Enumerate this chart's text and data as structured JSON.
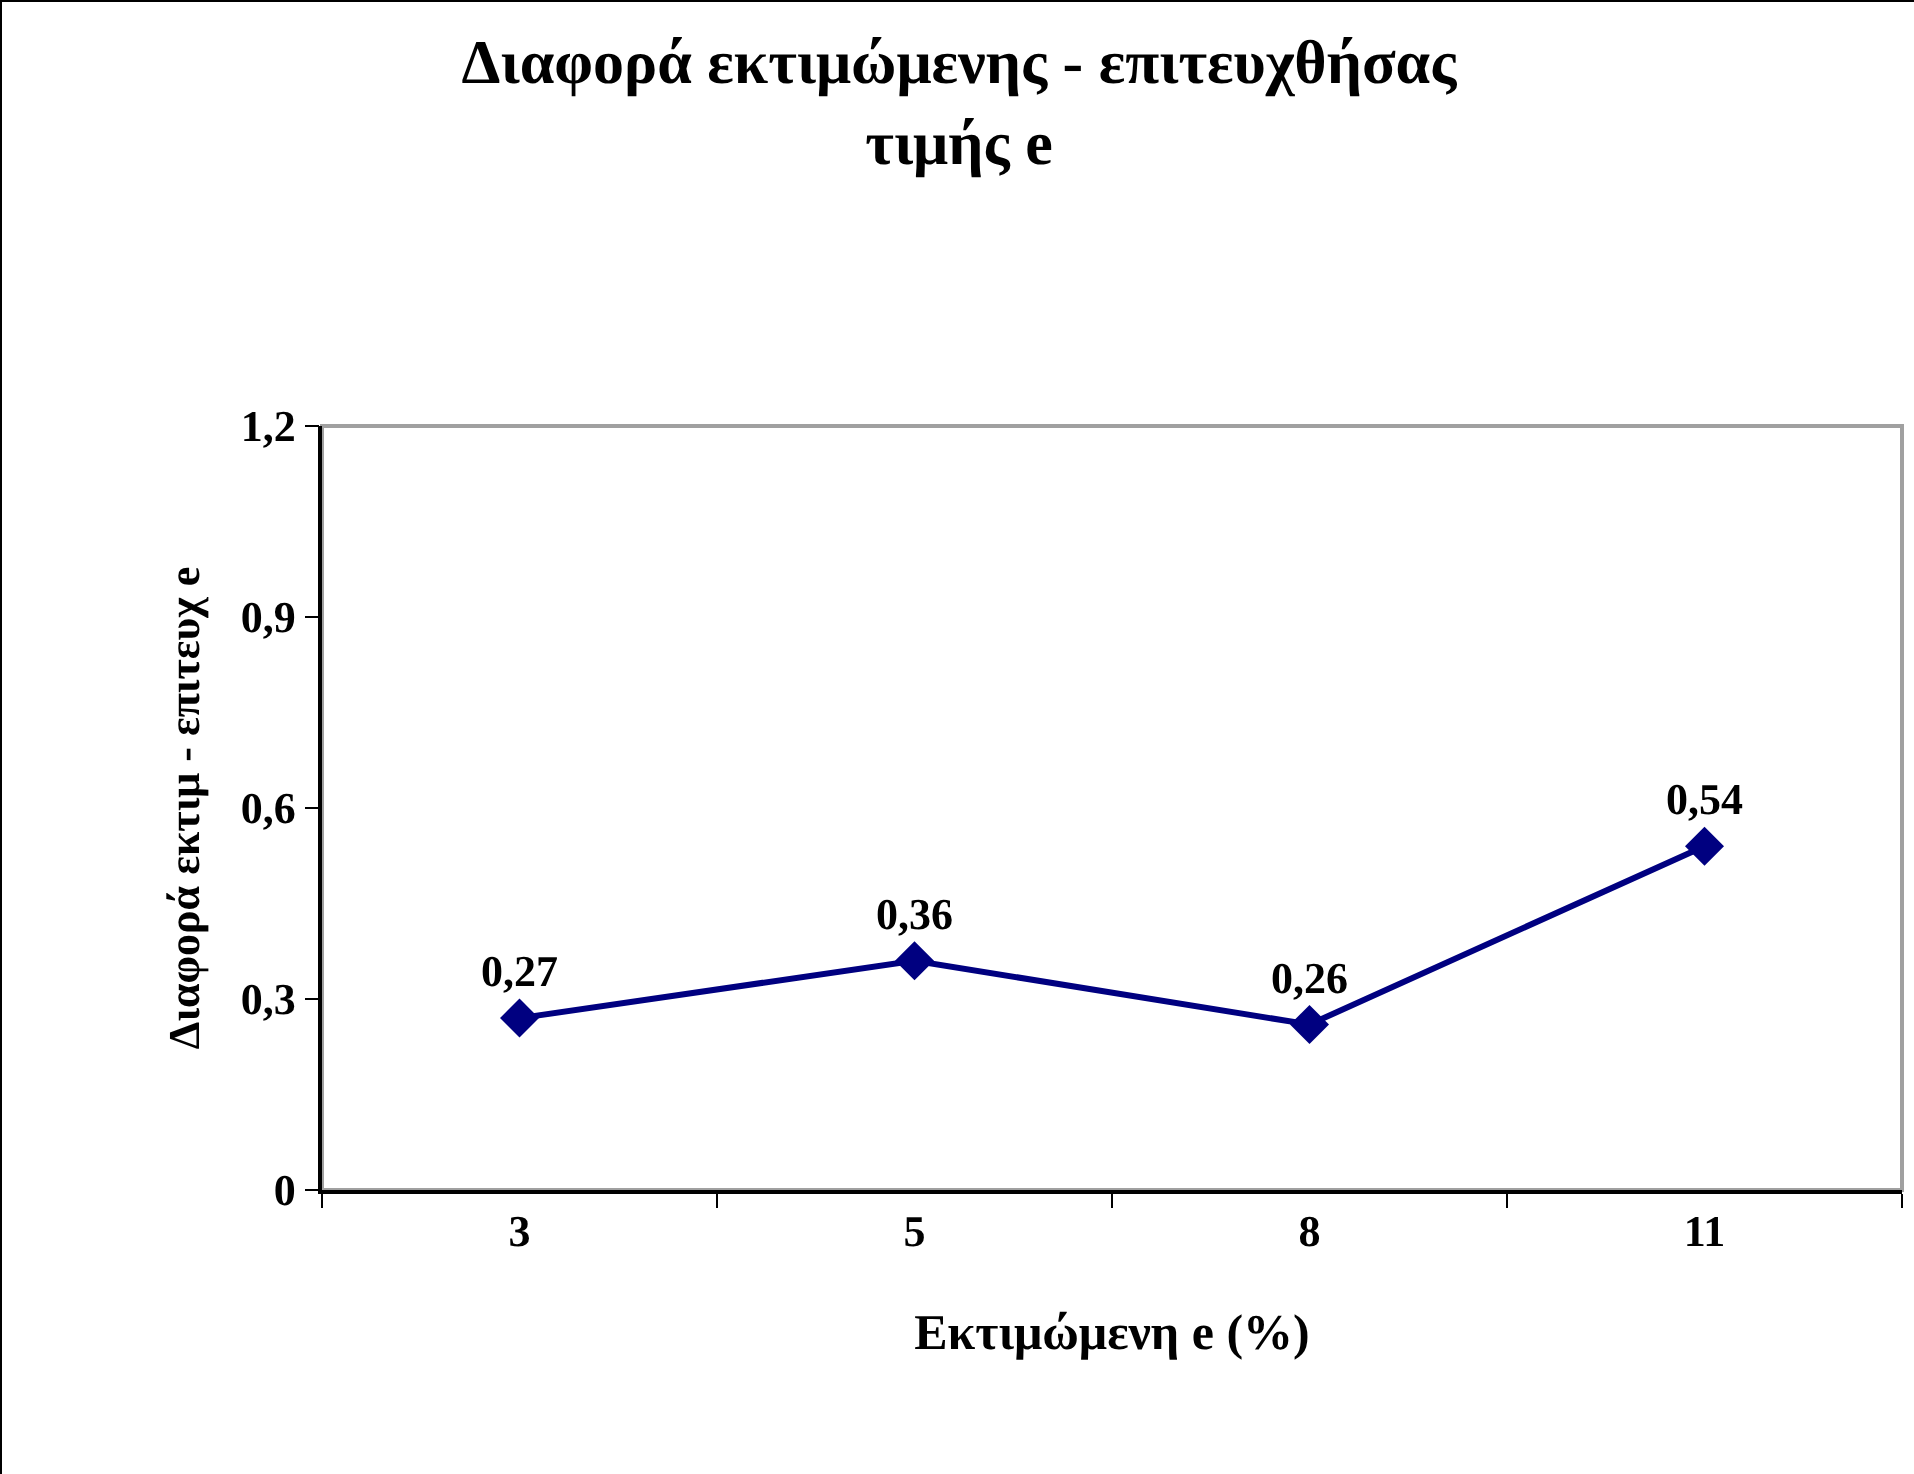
{
  "chart_data": {
    "type": "line",
    "title": "Διαφορά εκτιμώμενης - επιτευχθήσας\nτιμής e",
    "xlabel": "Εκτιμώμενη e (%)",
    "ylabel": "Διαφορά εκτιμ - επιτευχ e",
    "categories": [
      "3",
      "5",
      "8",
      "11"
    ],
    "series": [
      {
        "color": "#000080",
        "values": [
          0.27,
          0.36,
          0.26,
          0.54
        ],
        "value_labels": [
          "0,27",
          "0,36",
          "0,26",
          "0,54"
        ]
      }
    ],
    "ylim": [
      0,
      1.2
    ],
    "yticks": [
      0,
      {
        "value": 0.3,
        "label": "0,3"
      },
      {
        "value": 0.6,
        "label": "0,6"
      },
      {
        "value": 0.9,
        "label": "0,9"
      },
      {
        "value": 1.2,
        "label": "1,2"
      }
    ],
    "grid": false,
    "legend": false,
    "marker": "diamond",
    "line_style": "solid"
  }
}
